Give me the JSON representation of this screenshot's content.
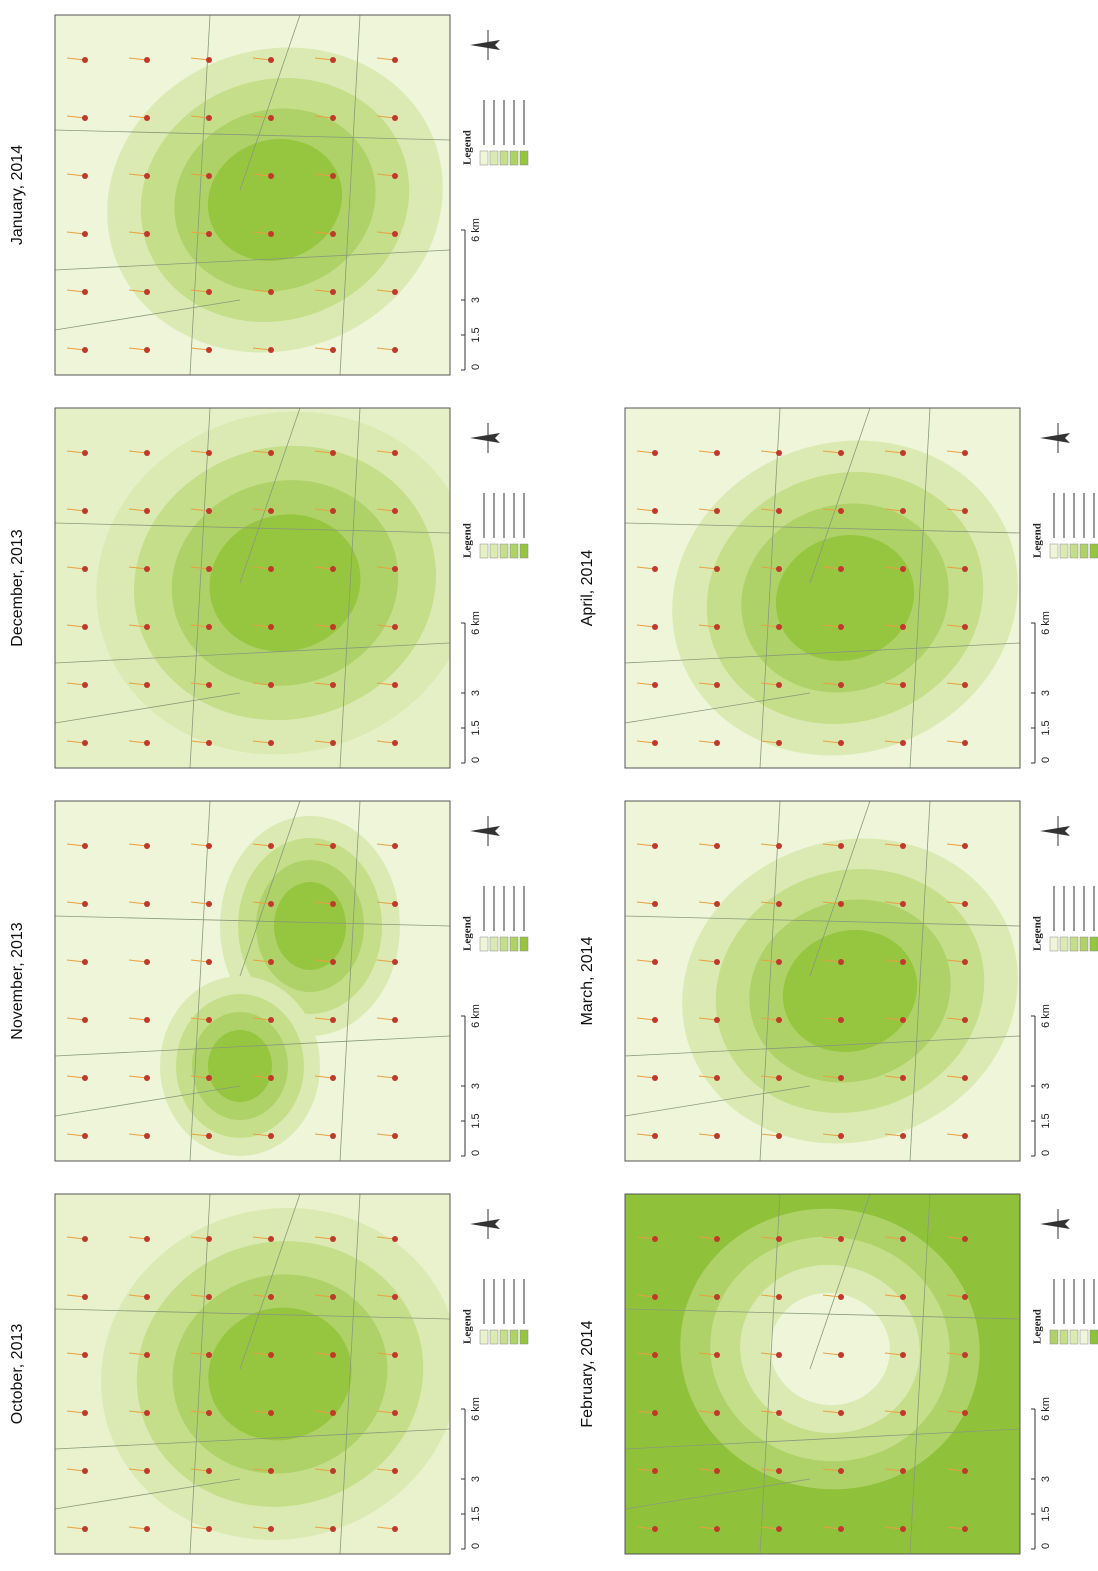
{
  "panels": [
    {
      "title": "January, 2014",
      "legend_title": "Legend",
      "scale": [
        "0",
        "1.5",
        "3",
        "6 km"
      ]
    },
    {
      "title": "December, 2013",
      "legend_title": "Legend",
      "scale": [
        "0",
        "1.5",
        "3",
        "6 km"
      ]
    },
    {
      "title": "November, 2013",
      "legend_title": "Legend",
      "scale": [
        "0",
        "1.5",
        "3",
        "6 km"
      ]
    },
    {
      "title": "October, 2013",
      "legend_title": "Legend",
      "scale": [
        "0",
        "1.5",
        "3",
        "6 km"
      ]
    },
    {
      "title": "April, 2014",
      "legend_title": "Legend",
      "scale": [
        "0",
        "1.5",
        "3",
        "6 km"
      ]
    },
    {
      "title": "March, 2014",
      "legend_title": "Legend",
      "scale": [
        "0",
        "1.5",
        "3",
        "6 km"
      ]
    },
    {
      "title": "February, 2014",
      "legend_title": "Legend",
      "scale": [
        "0",
        "1.5",
        "3",
        "6 km"
      ]
    }
  ]
}
